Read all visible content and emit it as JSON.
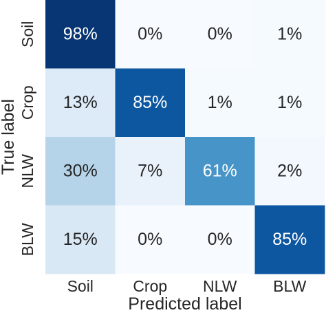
{
  "chart_data": {
    "type": "heatmap",
    "title": "",
    "xlabel": "Predicted label",
    "ylabel": "True label",
    "x_categories": [
      "Soil",
      "Crop",
      "NLW",
      "BLW"
    ],
    "y_categories": [
      "Soil",
      "Crop",
      "NLW",
      "BLW"
    ],
    "values": [
      [
        98,
        0,
        0,
        1
      ],
      [
        13,
        85,
        1,
        1
      ],
      [
        30,
        7,
        61,
        2
      ],
      [
        15,
        0,
        0,
        85
      ]
    ],
    "value_format": "percent",
    "value_range": [
      0,
      100
    ],
    "colormap": "Blues",
    "grid": false,
    "legend": "none"
  }
}
